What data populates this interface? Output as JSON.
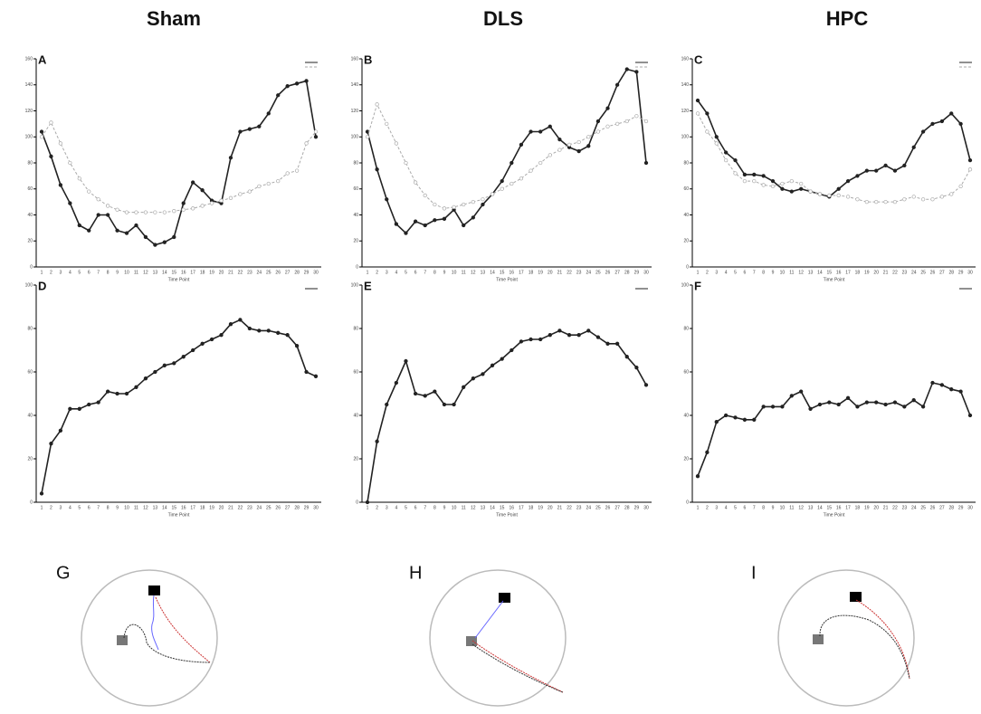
{
  "columns": [
    "Sham",
    "DLS",
    "HPC"
  ],
  "chart_data": [
    {
      "type": "line",
      "label": "A",
      "x_label": "Time Point",
      "categories": [
        1,
        2,
        3,
        4,
        5,
        6,
        7,
        8,
        9,
        10,
        11,
        12,
        13,
        14,
        15,
        16,
        17,
        18,
        19,
        20,
        21,
        22,
        23,
        24,
        25,
        26,
        27,
        28,
        29,
        30
      ],
      "ylim": [
        0,
        160
      ],
      "yticks": [
        0,
        20,
        40,
        60,
        80,
        100,
        120,
        140,
        160
      ],
      "series": [
        {
          "color": "#222222",
          "dashed": false,
          "values": [
            104,
            85,
            63,
            49,
            32,
            28,
            40,
            40,
            28,
            26,
            32,
            23,
            17,
            19,
            23,
            49,
            65,
            59,
            51,
            49,
            84,
            104,
            106,
            108,
            118,
            132,
            139,
            141,
            143,
            100
          ]
        },
        {
          "color": "#aaaaaa",
          "dashed": true,
          "values": [
            100,
            111,
            95,
            80,
            68,
            58,
            52,
            47,
            44,
            42,
            42,
            42,
            42,
            42,
            43,
            44,
            45,
            47,
            49,
            51,
            53,
            56,
            58,
            62,
            64,
            66,
            72,
            74,
            95,
            104
          ]
        }
      ]
    },
    {
      "type": "line",
      "label": "B",
      "x_label": "Time Point",
      "categories": [
        1,
        2,
        3,
        4,
        5,
        6,
        7,
        8,
        9,
        10,
        11,
        12,
        13,
        14,
        15,
        16,
        17,
        18,
        19,
        20,
        21,
        22,
        23,
        24,
        25,
        26,
        27,
        28,
        29,
        30
      ],
      "ylim": [
        0,
        160
      ],
      "yticks": [
        0,
        20,
        40,
        60,
        80,
        100,
        120,
        140,
        160
      ],
      "series": [
        {
          "color": "#222222",
          "dashed": false,
          "values": [
            104,
            75,
            52,
            33,
            26,
            35,
            32,
            36,
            37,
            44,
            32,
            38,
            48,
            56,
            66,
            80,
            94,
            104,
            104,
            108,
            98,
            92,
            89,
            93,
            112,
            122,
            140,
            152,
            150,
            80
          ]
        },
        {
          "color": "#aaaaaa",
          "dashed": true,
          "values": [
            100,
            125,
            110,
            95,
            80,
            65,
            55,
            48,
            45,
            46,
            48,
            50,
            52,
            56,
            60,
            64,
            68,
            74,
            80,
            86,
            90,
            94,
            96,
            100,
            104,
            108,
            110,
            112,
            116,
            112
          ]
        }
      ]
    },
    {
      "type": "line",
      "label": "C",
      "x_label": "Time Point",
      "categories": [
        1,
        2,
        3,
        4,
        5,
        6,
        7,
        8,
        9,
        10,
        11,
        12,
        13,
        14,
        15,
        16,
        17,
        18,
        19,
        20,
        21,
        22,
        23,
        24,
        25,
        26,
        27,
        28,
        29,
        30
      ],
      "ylim": [
        0,
        160
      ],
      "yticks": [
        0,
        20,
        40,
        60,
        80,
        100,
        120,
        140,
        160
      ],
      "series": [
        {
          "color": "#222222",
          "dashed": false,
          "values": [
            128,
            118,
            100,
            88,
            82,
            71,
            71,
            70,
            66,
            60,
            58,
            60,
            58,
            56,
            54,
            60,
            66,
            70,
            74,
            74,
            78,
            74,
            78,
            92,
            104,
            110,
            112,
            118,
            110,
            82
          ]
        },
        {
          "color": "#aaaaaa",
          "dashed": true,
          "values": [
            118,
            104,
            95,
            82,
            72,
            66,
            66,
            63,
            62,
            64,
            66,
            64,
            58,
            56,
            55,
            55,
            54,
            52,
            50,
            50,
            50,
            50,
            52,
            54,
            52,
            52,
            54,
            56,
            62,
            75
          ]
        }
      ]
    },
    {
      "type": "line",
      "label": "D",
      "x_label": "Time Point",
      "categories": [
        1,
        2,
        3,
        4,
        5,
        6,
        7,
        8,
        9,
        10,
        11,
        12,
        13,
        14,
        15,
        16,
        17,
        18,
        19,
        20,
        21,
        22,
        23,
        24,
        25,
        26,
        27,
        28,
        29,
        30
      ],
      "ylim": [
        0,
        100
      ],
      "yticks": [
        0,
        20,
        40,
        60,
        80,
        100
      ],
      "series": [
        {
          "color": "#222222",
          "dashed": false,
          "values": [
            4,
            27,
            33,
            43,
            43,
            45,
            46,
            51,
            50,
            50,
            53,
            57,
            60,
            63,
            64,
            67,
            70,
            73,
            75,
            77,
            82,
            84,
            80,
            79,
            79,
            78,
            77,
            72,
            60,
            58
          ]
        }
      ]
    },
    {
      "type": "line",
      "label": "E",
      "x_label": "Time Point",
      "categories": [
        1,
        2,
        3,
        4,
        5,
        6,
        7,
        8,
        9,
        10,
        11,
        12,
        13,
        14,
        15,
        16,
        17,
        18,
        19,
        20,
        21,
        22,
        23,
        24,
        25,
        26,
        27,
        28,
        29,
        30
      ],
      "ylim": [
        0,
        100
      ],
      "yticks": [
        0,
        20,
        40,
        60,
        80,
        100
      ],
      "series": [
        {
          "color": "#222222",
          "dashed": false,
          "values": [
            0,
            28,
            45,
            55,
            65,
            50,
            49,
            51,
            45,
            45,
            53,
            57,
            59,
            63,
            66,
            70,
            74,
            75,
            75,
            77,
            79,
            77,
            77,
            79,
            76,
            73,
            73,
            67,
            62,
            54
          ]
        }
      ]
    },
    {
      "type": "line",
      "label": "F",
      "x_label": "Time Point",
      "categories": [
        1,
        2,
        3,
        4,
        5,
        6,
        7,
        8,
        9,
        10,
        11,
        12,
        13,
        14,
        15,
        16,
        17,
        18,
        19,
        20,
        21,
        22,
        23,
        24,
        25,
        26,
        27,
        28,
        29,
        30
      ],
      "ylim": [
        0,
        100
      ],
      "yticks": [
        0,
        20,
        40,
        60,
        80,
        100
      ],
      "series": [
        {
          "color": "#222222",
          "dashed": false,
          "values": [
            12,
            23,
            37,
            40,
            39,
            38,
            38,
            44,
            44,
            44,
            49,
            51,
            43,
            45,
            46,
            45,
            48,
            44,
            46,
            46,
            45,
            46,
            44,
            47,
            44,
            55,
            54,
            52,
            51,
            40
          ]
        }
      ]
    }
  ],
  "trajectories": {
    "labels": [
      "G",
      "H",
      "I"
    ]
  }
}
